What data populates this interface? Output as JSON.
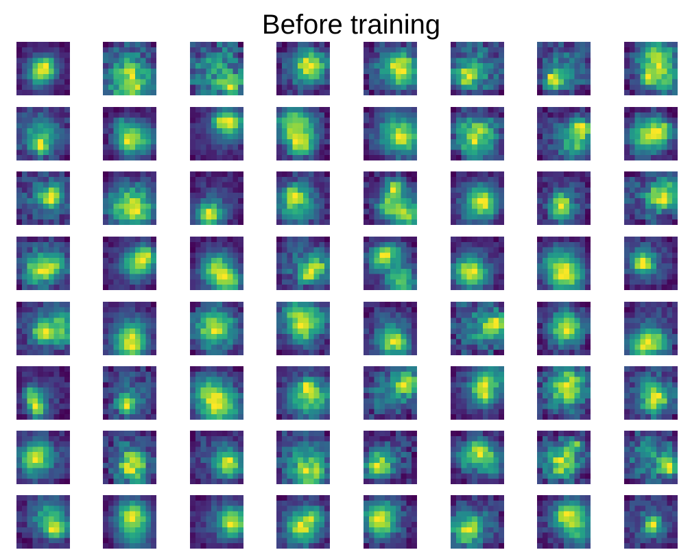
{
  "figure": {
    "title": "Before training"
  },
  "grid": {
    "rows": 8,
    "cols": 8,
    "tile_resolution": 10,
    "colormap": "viridis",
    "colormap_endpoints": [
      "#440154",
      "#fde725"
    ]
  }
}
